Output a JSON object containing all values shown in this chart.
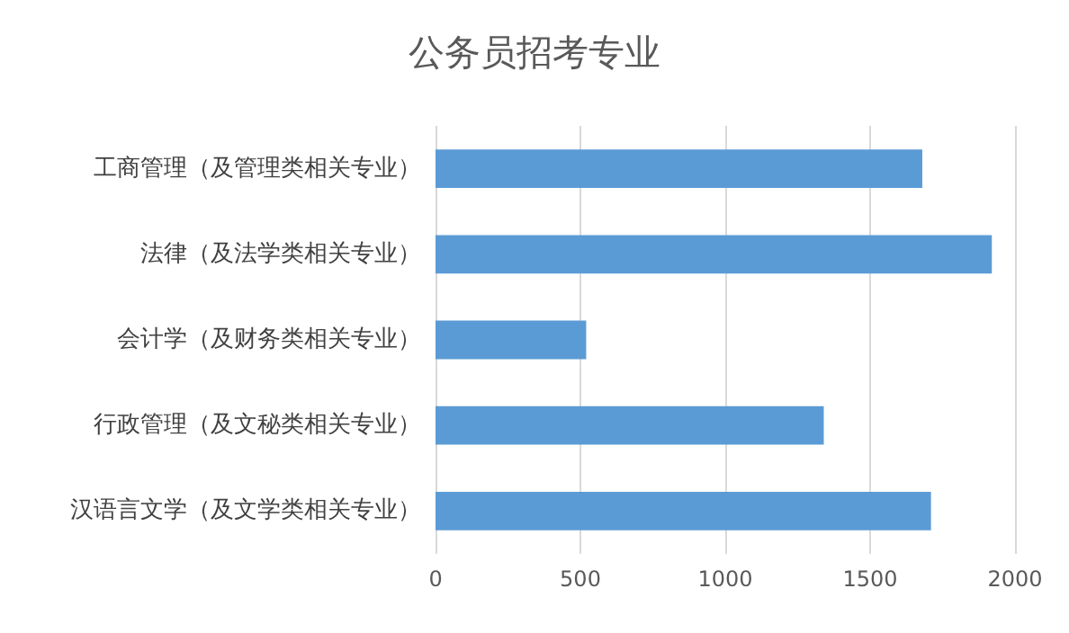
{
  "chart_data": {
    "type": "bar",
    "orientation": "horizontal",
    "title": "公务员招考专业",
    "categories": [
      "工商管理（及管理类相关专业）",
      "法律（及法学类相关专业）",
      "会计学（及财务类相关专业）",
      "行政管理（及文秘类相关专业）",
      "汉语言文学（及文学类相关专业）"
    ],
    "values": [
      1680,
      1920,
      520,
      1340,
      1710
    ],
    "color": "#5b9bd5",
    "xlim": [
      0,
      2000
    ],
    "xticks": [
      0,
      500,
      1000,
      1500,
      2000
    ],
    "grid": "x"
  }
}
